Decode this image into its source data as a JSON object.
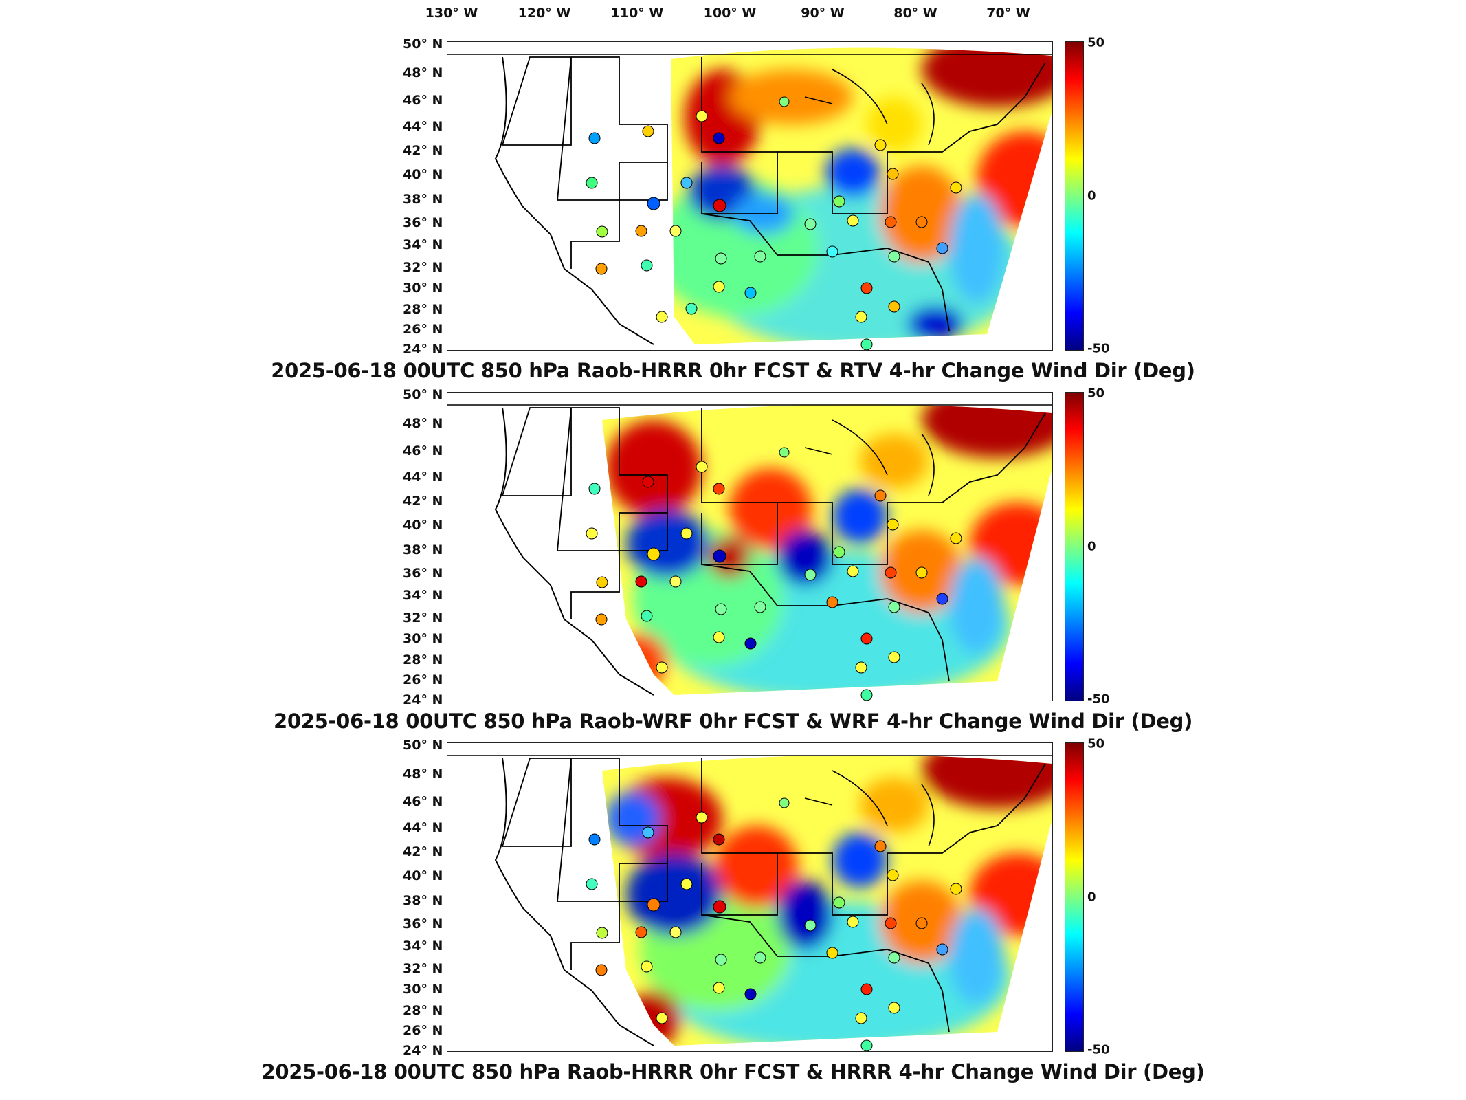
{
  "longitudes": [
    "130° W",
    "120° W",
    "110° W",
    "100° W",
    "90° W",
    "80° W",
    "70° W"
  ],
  "latitudes": [
    "50° N",
    "48° N",
    "46° N",
    "44° N",
    "42° N",
    "40° N",
    "38° N",
    "36° N",
    "34° N",
    "32° N",
    "30° N",
    "28° N",
    "26° N",
    "24° N"
  ],
  "colorbar": {
    "max": "50",
    "mid": "0",
    "min": "-50",
    "units": "Deg",
    "colormap": "jet"
  },
  "panels": [
    {
      "title": "2025-06-18 00UTC 850 hPa Raob-HRRR 0hr FCST & RTV 4-hr Change Wind Dir (Deg)"
    },
    {
      "title": "2025-06-18 00UTC 850 hPa Raob-WRF 0hr FCST & WRF 4-hr Change Wind Dir (Deg)"
    },
    {
      "title": "2025-06-18 00UTC 850 hPa Raob-HRRR 0hr FCST & HRRR 4-hr Change Wind Dir (Deg)"
    }
  ],
  "colors": {
    "positive": "#b40000",
    "neutral": "#80ff80",
    "negative": "#0000b4",
    "background": "#ffffff"
  }
}
